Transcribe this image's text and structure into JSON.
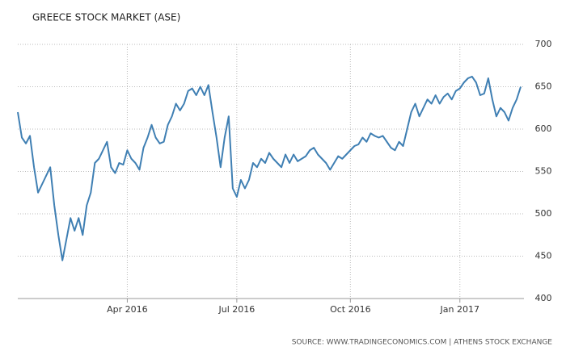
{
  "chart_data": {
    "type": "line",
    "title": "GREECE STOCK MARKET (ASE)",
    "source": "SOURCE: WWW.TRADINGECONOMICS.COM | ATHENS STOCK EXCHANGE",
    "categories": [
      null,
      null,
      null,
      null,
      null,
      null,
      null,
      null,
      null,
      null,
      null,
      null,
      null,
      null,
      null,
      null,
      null,
      null,
      null,
      null,
      null,
      null,
      null,
      null,
      null,
      null,
      null,
      "Apr 2016",
      null,
      null,
      null,
      null,
      null,
      null,
      null,
      null,
      null,
      null,
      null,
      null,
      null,
      null,
      null,
      null,
      null,
      null,
      null,
      null,
      null,
      null,
      null,
      null,
      null,
      null,
      "Jul 2016",
      null,
      null,
      null,
      null,
      null,
      null,
      null,
      null,
      null,
      null,
      null,
      null,
      null,
      null,
      null,
      null,
      null,
      null,
      null,
      null,
      null,
      null,
      null,
      null,
      null,
      null,
      null,
      "Oct 2016",
      null,
      null,
      null,
      null,
      null,
      null,
      null,
      null,
      null,
      null,
      null,
      null,
      null,
      null,
      null,
      null,
      null,
      null,
      null,
      null,
      null,
      null,
      null,
      null,
      null,
      null,
      "Jan 2017",
      null,
      null,
      null,
      null,
      null,
      null,
      null,
      null,
      null,
      null,
      null,
      null,
      null,
      null,
      null
    ],
    "values": [
      620,
      590,
      583,
      592,
      555,
      525,
      535,
      545,
      555,
      510,
      475,
      445,
      470,
      495,
      480,
      495,
      475,
      510,
      525,
      560,
      565,
      575,
      585,
      555,
      548,
      560,
      558,
      575,
      565,
      560,
      552,
      578,
      590,
      605,
      590,
      583,
      585,
      605,
      615,
      630,
      622,
      630,
      645,
      648,
      640,
      650,
      640,
      652,
      620,
      590,
      555,
      590,
      615,
      530,
      520,
      540,
      530,
      540,
      560,
      555,
      565,
      560,
      572,
      565,
      560,
      555,
      570,
      560,
      570,
      562,
      565,
      568,
      575,
      578,
      570,
      565,
      560,
      552,
      560,
      568,
      565,
      570,
      575,
      580,
      582,
      590,
      585,
      595,
      592,
      590,
      592,
      585,
      578,
      575,
      585,
      580,
      600,
      620,
      630,
      615,
      625,
      635,
      630,
      640,
      630,
      638,
      642,
      635,
      645,
      648,
      655,
      660,
      662,
      655,
      640,
      642,
      660,
      635,
      615,
      625,
      620,
      610,
      625,
      635,
      650
    ],
    "color": "#3f7fb3",
    "ylim": [
      400,
      700
    ],
    "yticks": [
      400,
      450,
      500,
      550,
      600,
      650,
      700
    ],
    "grid": true
  }
}
